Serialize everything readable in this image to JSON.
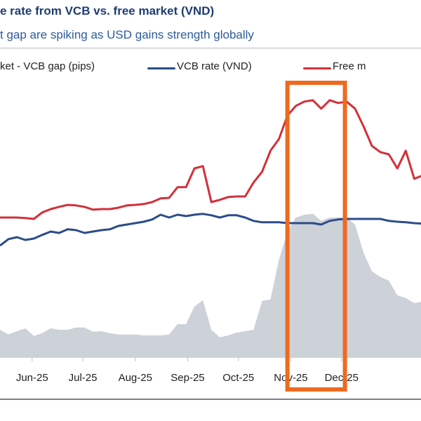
{
  "header": {
    "title": "e rate from VCB vs. free market (VND)",
    "subtitle": "t gap are spiking as USD gains strength globally"
  },
  "chart_data": {
    "type": "line",
    "title": "e rate from VCB vs. free market (VND)",
    "subtitle": "t gap are spiking as USD gains strength globally",
    "xlabel": "",
    "ylabel": "",
    "y_axis_shown": false,
    "y_units_note": "no y-axis printed; values are relative levels on a 0-100 scale",
    "ylim": [
      0,
      100
    ],
    "xlim": [
      "2025-05-13",
      "2026-01-17"
    ],
    "grid": false,
    "legend_placement": "top",
    "tick_labels": [
      "Jun-25",
      "Jul-25",
      "Aug-25",
      "Sep-25",
      "Oct-25",
      "Nov-25",
      "Dec-25"
    ],
    "tick_dates": [
      "2025-06-01",
      "2025-07-01",
      "2025-08-01",
      "2025-09-01",
      "2025-10-01",
      "2025-11-01",
      "2025-12-01"
    ],
    "x": [
      "2025-05-13",
      "2025-05-18",
      "2025-05-23",
      "2025-05-28",
      "2025-06-02",
      "2025-06-07",
      "2025-06-12",
      "2025-06-17",
      "2025-06-22",
      "2025-06-27",
      "2025-07-02",
      "2025-07-07",
      "2025-07-12",
      "2025-07-17",
      "2025-07-22",
      "2025-07-27",
      "2025-08-01",
      "2025-08-06",
      "2025-08-11",
      "2025-08-16",
      "2025-08-21",
      "2025-08-26",
      "2025-08-31",
      "2025-09-05",
      "2025-09-10",
      "2025-09-15",
      "2025-09-20",
      "2025-09-25",
      "2025-09-30",
      "2025-10-05",
      "2025-10-10",
      "2025-10-15",
      "2025-10-20",
      "2025-10-25",
      "2025-10-30",
      "2025-11-04",
      "2025-11-09",
      "2025-11-14",
      "2025-11-19",
      "2025-11-24",
      "2025-11-29",
      "2025-12-04",
      "2025-12-09",
      "2025-12-14",
      "2025-12-19",
      "2025-12-24",
      "2025-12-29",
      "2026-01-03",
      "2026-01-08",
      "2026-01-13",
      "2026-01-18"
    ],
    "series": [
      {
        "name": "ket - VCB gap (pips)",
        "kind": "area",
        "color": "#cdd1d8",
        "values": [
          10,
          8.3,
          9.5,
          10.5,
          7.8,
          8.8,
          10.5,
          10,
          10,
          10.8,
          10.8,
          9.3,
          9.5,
          8.8,
          8.3,
          8.3,
          8.3,
          8,
          8,
          8,
          8.3,
          12,
          12,
          18.3,
          20.5,
          10,
          7.3,
          8,
          9,
          9.5,
          10,
          20.3,
          20.8,
          35,
          45,
          50,
          51,
          51.3,
          48.8,
          50,
          50,
          50,
          47.5,
          37.5,
          30.8,
          28.8,
          27.5,
          22.3,
          21.3,
          19.5,
          20
        ]
      },
      {
        "name": "VCB rate (VND)",
        "kind": "line",
        "color": "#2b4c8a",
        "values": [
          40,
          42.3,
          43,
          42,
          42.5,
          43.8,
          45,
          44.5,
          45.8,
          45.5,
          44.5,
          45,
          45.5,
          45.8,
          47,
          47.5,
          48,
          48.5,
          49.3,
          51,
          50,
          51,
          50.5,
          51,
          51.3,
          50.8,
          50,
          50.8,
          50.8,
          50,
          48.8,
          48.3,
          48.3,
          48.3,
          48,
          48,
          48,
          48,
          47.5,
          48.8,
          49.3,
          49.5,
          49.5,
          49.5,
          49.5,
          49.5,
          48.8,
          48.5,
          48.3,
          48,
          47.8
        ]
      },
      {
        "name": "Free m",
        "kind": "line",
        "color": "#d3303a",
        "values": [
          50,
          50,
          50,
          49.8,
          49.5,
          51.8,
          53,
          53.8,
          54.5,
          54.3,
          53.8,
          52.8,
          53,
          53,
          53.5,
          54.3,
          54.5,
          54.8,
          55.5,
          56.8,
          57,
          60.8,
          60.8,
          67.5,
          68.3,
          55.5,
          56.3,
          57.3,
          57.5,
          57.5,
          62.5,
          66.3,
          73.8,
          78,
          86.3,
          89.8,
          91.3,
          91.8,
          88.8,
          91.8,
          90.8,
          91.3,
          88.8,
          82.5,
          75.5,
          73.3,
          72.5,
          67.5,
          73.8,
          63.8,
          65
        ]
      }
    ],
    "annotations": [
      {
        "type": "highlight-box",
        "color": "#ee6a1f",
        "x_start": "2025-10-30",
        "x_end": "2025-12-03"
      }
    ]
  }
}
